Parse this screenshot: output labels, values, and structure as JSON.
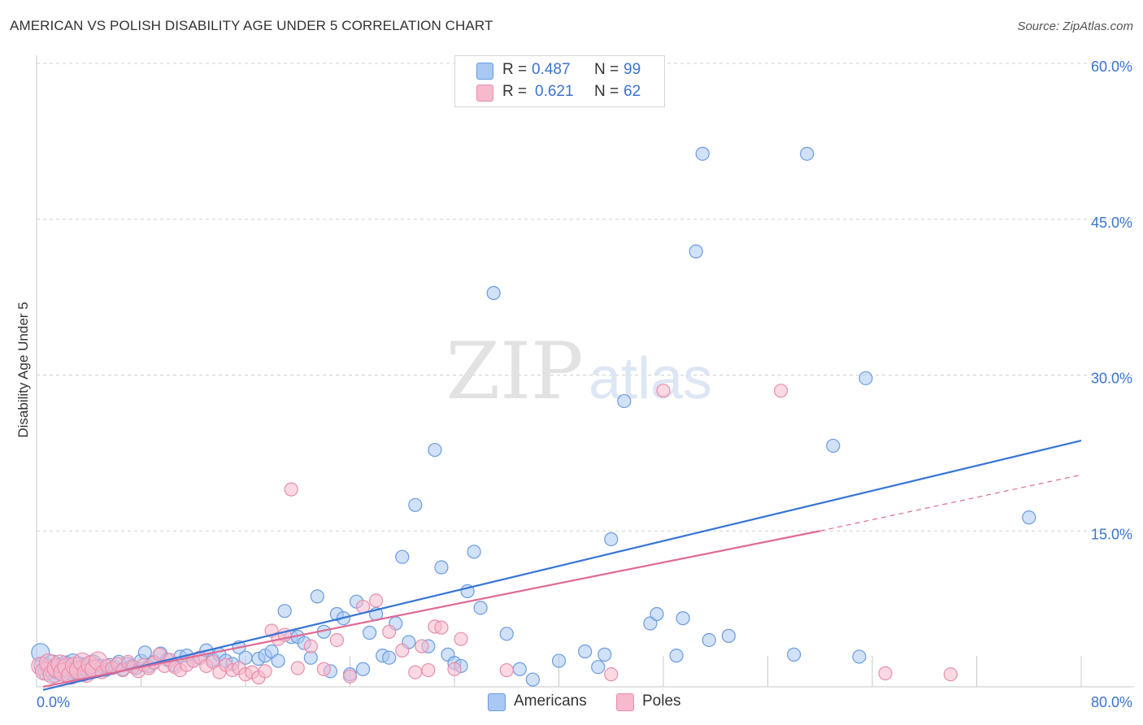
{
  "title": "AMERICAN VS POLISH DISABILITY AGE UNDER 5 CORRELATION CHART",
  "source": "Source: ZipAtlas.com",
  "watermark": {
    "zip": "ZIP",
    "atlas": "atlas"
  },
  "legend_stats": {
    "americans": {
      "r_label": "R =",
      "r_value": "0.487",
      "n_label": "N =",
      "n_value": "99"
    },
    "poles": {
      "r_label": "R =",
      "r_value": "0.621",
      "n_label": "N =",
      "n_value": "62"
    }
  },
  "colors": {
    "americans_fill": "#a9c8f3",
    "americans_stroke": "#6b9be0",
    "americans_line": "#3574d4",
    "poles_fill": "#f7b9cc",
    "poles_stroke": "#e88eab",
    "poles_line": "#e06a93",
    "tick_label": "#3b74d1",
    "grid": "#d0d0d0"
  },
  "chart_data": {
    "type": "scatter",
    "title": "AMERICAN VS POLISH DISABILITY AGE UNDER 5 CORRELATION CHART",
    "xlabel": "",
    "ylabel": "Disability Age Under 5",
    "xlim": [
      0,
      80
    ],
    "ylim": [
      0,
      60
    ],
    "x_tick_labels": [
      "0.0%",
      "80.0%"
    ],
    "y_ticks": [
      15,
      30,
      45,
      60
    ],
    "y_tick_labels": [
      "15.0%",
      "30.0%",
      "45.0%",
      "60.0%"
    ],
    "grid": true,
    "legend_position": "bottom",
    "series": [
      {
        "name": "Americans",
        "r": 0.487,
        "n": 99,
        "trend": {
          "x": [
            0.5,
            80
          ],
          "y": [
            -0.3,
            23.7
          ],
          "style": "solid"
        },
        "points": [
          [
            0.3,
            3.3
          ],
          [
            0.5,
            2.0
          ],
          [
            0.8,
            1.5
          ],
          [
            1.0,
            1.8
          ],
          [
            1.2,
            2.2
          ],
          [
            1.4,
            1.3
          ],
          [
            1.6,
            1.6
          ],
          [
            1.8,
            1.9
          ],
          [
            2.0,
            1.4
          ],
          [
            2.2,
            2.1
          ],
          [
            2.4,
            1.7
          ],
          [
            2.6,
            1.5
          ],
          [
            2.8,
            2.3
          ],
          [
            3.0,
            1.6
          ],
          [
            3.3,
            2.0
          ],
          [
            3.5,
            1.4
          ],
          [
            3.7,
            1.9
          ],
          [
            4.0,
            1.7
          ],
          [
            4.3,
            2.2
          ],
          [
            4.6,
            1.8
          ],
          [
            5.0,
            2.0
          ],
          [
            5.3,
            1.6
          ],
          [
            5.6,
            2.1
          ],
          [
            6.0,
            1.9
          ],
          [
            6.3,
            2.4
          ],
          [
            6.6,
            1.7
          ],
          [
            7.0,
            2.2
          ],
          [
            7.3,
            2.0
          ],
          [
            7.6,
            1.8
          ],
          [
            8.0,
            2.5
          ],
          [
            8.3,
            3.3
          ],
          [
            8.6,
            2.0
          ],
          [
            9.0,
            2.4
          ],
          [
            9.5,
            3.2
          ],
          [
            10.0,
            2.6
          ],
          [
            10.5,
            2.1
          ],
          [
            11.0,
            2.9
          ],
          [
            11.5,
            3.0
          ],
          [
            12.0,
            2.5
          ],
          [
            12.5,
            2.8
          ],
          [
            13.0,
            3.5
          ],
          [
            13.5,
            2.6
          ],
          [
            14.0,
            3.1
          ],
          [
            14.5,
            2.5
          ],
          [
            15.0,
            2.2
          ],
          [
            15.5,
            3.8
          ],
          [
            16.0,
            2.8
          ],
          [
            17.0,
            2.7
          ],
          [
            17.5,
            3.0
          ],
          [
            18.0,
            3.4
          ],
          [
            18.5,
            2.5
          ],
          [
            19.0,
            7.3
          ],
          [
            19.5,
            4.8
          ],
          [
            20.0,
            4.8
          ],
          [
            20.5,
            4.2
          ],
          [
            21.0,
            2.8
          ],
          [
            21.5,
            8.7
          ],
          [
            22.0,
            5.3
          ],
          [
            22.5,
            1.5
          ],
          [
            23.0,
            7.0
          ],
          [
            23.5,
            6.6
          ],
          [
            24.0,
            1.2
          ],
          [
            24.5,
            8.2
          ],
          [
            25.0,
            1.7
          ],
          [
            25.5,
            5.2
          ],
          [
            26.0,
            7.0
          ],
          [
            26.5,
            3.0
          ],
          [
            27.0,
            2.8
          ],
          [
            27.5,
            6.1
          ],
          [
            28.0,
            12.5
          ],
          [
            28.5,
            4.3
          ],
          [
            29.0,
            17.5
          ],
          [
            30.0,
            3.9
          ],
          [
            30.5,
            22.8
          ],
          [
            31.0,
            11.5
          ],
          [
            31.5,
            3.1
          ],
          [
            32.0,
            2.3
          ],
          [
            32.5,
            2.0
          ],
          [
            33.0,
            9.2
          ],
          [
            33.5,
            13.0
          ],
          [
            34.0,
            7.6
          ],
          [
            35.0,
            37.9
          ],
          [
            36.0,
            5.1
          ],
          [
            37.0,
            1.7
          ],
          [
            38.0,
            0.7
          ],
          [
            40.0,
            2.5
          ],
          [
            42.0,
            3.4
          ],
          [
            43.0,
            1.9
          ],
          [
            43.5,
            3.1
          ],
          [
            44.0,
            14.2
          ],
          [
            45.0,
            27.5
          ],
          [
            47.0,
            6.1
          ],
          [
            47.5,
            7.0
          ],
          [
            49.0,
            3.0
          ],
          [
            49.5,
            6.6
          ],
          [
            50.5,
            41.9
          ],
          [
            51.0,
            51.3
          ],
          [
            51.5,
            4.5
          ],
          [
            53.0,
            4.9
          ],
          [
            58.0,
            3.1
          ],
          [
            59.0,
            51.3
          ],
          [
            61.0,
            23.2
          ],
          [
            63.0,
            2.9
          ],
          [
            63.5,
            29.7
          ],
          [
            76.0,
            16.3
          ]
        ]
      },
      {
        "name": "Poles",
        "r": 0.621,
        "n": 62,
        "trend": {
          "x": [
            0.5,
            60
          ],
          "y": [
            0.0,
            15.0
          ],
          "style": "solid"
        },
        "trend_extension": {
          "x": [
            60,
            80
          ],
          "y": [
            15.0,
            20.4
          ],
          "style": "dashed"
        },
        "points": [
          [
            0.3,
            2.0
          ],
          [
            0.6,
            1.5
          ],
          [
            0.9,
            2.3
          ],
          [
            1.2,
            1.2
          ],
          [
            1.5,
            1.8
          ],
          [
            1.8,
            2.2
          ],
          [
            2.0,
            1.4
          ],
          [
            2.3,
            1.9
          ],
          [
            2.6,
            1.1
          ],
          [
            2.9,
            2.0
          ],
          [
            3.2,
            1.6
          ],
          [
            3.5,
            2.4
          ],
          [
            3.8,
            1.3
          ],
          [
            4.1,
            2.1
          ],
          [
            4.4,
            1.7
          ],
          [
            4.7,
            2.5
          ],
          [
            5.0,
            1.4
          ],
          [
            5.4,
            2.0
          ],
          [
            5.8,
            1.8
          ],
          [
            6.2,
            2.2
          ],
          [
            6.6,
            1.6
          ],
          [
            7.0,
            2.4
          ],
          [
            7.4,
            1.9
          ],
          [
            7.8,
            1.5
          ],
          [
            8.2,
            2.1
          ],
          [
            8.6,
            1.8
          ],
          [
            9.0,
            2.3
          ],
          [
            9.4,
            3.1
          ],
          [
            9.8,
            2.0
          ],
          [
            10.2,
            2.6
          ],
          [
            10.6,
            1.9
          ],
          [
            11.0,
            1.6
          ],
          [
            11.5,
            2.1
          ],
          [
            12.0,
            2.5
          ],
          [
            12.5,
            2.8
          ],
          [
            13.0,
            2.0
          ],
          [
            13.5,
            2.4
          ],
          [
            14.0,
            1.4
          ],
          [
            14.5,
            2.1
          ],
          [
            15.0,
            1.6
          ],
          [
            15.5,
            1.8
          ],
          [
            16.0,
            1.2
          ],
          [
            16.5,
            1.4
          ],
          [
            17.0,
            0.9
          ],
          [
            17.5,
            1.5
          ],
          [
            18.0,
            5.4
          ],
          [
            18.5,
            4.6
          ],
          [
            19.0,
            5.0
          ],
          [
            19.5,
            19.0
          ],
          [
            20.0,
            1.8
          ],
          [
            21.0,
            3.9
          ],
          [
            22.0,
            1.7
          ],
          [
            23.0,
            4.5
          ],
          [
            24.0,
            1.0
          ],
          [
            25.0,
            7.7
          ],
          [
            26.0,
            8.3
          ],
          [
            27.0,
            5.3
          ],
          [
            28.0,
            3.5
          ],
          [
            29.0,
            1.4
          ],
          [
            29.5,
            3.9
          ],
          [
            30.0,
            1.6
          ],
          [
            30.5,
            5.8
          ],
          [
            31.0,
            5.7
          ],
          [
            32.0,
            1.7
          ],
          [
            32.5,
            4.6
          ],
          [
            36.0,
            1.6
          ],
          [
            44.0,
            1.2
          ],
          [
            48.0,
            28.5
          ],
          [
            57.0,
            28.5
          ],
          [
            65.0,
            1.3
          ],
          [
            70.0,
            1.2
          ]
        ]
      }
    ]
  }
}
